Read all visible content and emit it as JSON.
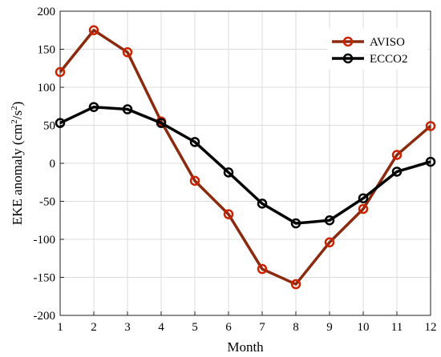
{
  "chart_data": {
    "type": "line",
    "xlabel": "Month",
    "ylabel_main": "EKE anomaly (cm",
    "ylabel_sup1": "2",
    "ylabel_mid": "/s",
    "ylabel_sup2": "2",
    "ylabel_end": ")",
    "x": [
      1,
      2,
      3,
      4,
      5,
      6,
      7,
      8,
      9,
      10,
      11,
      12
    ],
    "xlim": [
      1,
      12
    ],
    "ylim": [
      -200,
      200
    ],
    "xticks": [
      1,
      2,
      3,
      4,
      5,
      6,
      7,
      8,
      9,
      10,
      11,
      12
    ],
    "yticks": [
      -200,
      -150,
      -100,
      -50,
      0,
      50,
      100,
      150,
      200
    ],
    "grid": true,
    "legend_position": "top-right",
    "series": [
      {
        "name": "AVISO",
        "color": "#8b2a0e",
        "marker_color": "#cc2200",
        "values": [
          120,
          175,
          146,
          55,
          -23,
          -67,
          -139,
          -159,
          -104,
          -60,
          11,
          49
        ]
      },
      {
        "name": "ECCO2",
        "color": "#000000",
        "marker_color": "#000000",
        "values": [
          53,
          74,
          71,
          53,
          28,
          -12,
          -53,
          -79,
          -75,
          -46,
          -11,
          2
        ]
      }
    ]
  }
}
